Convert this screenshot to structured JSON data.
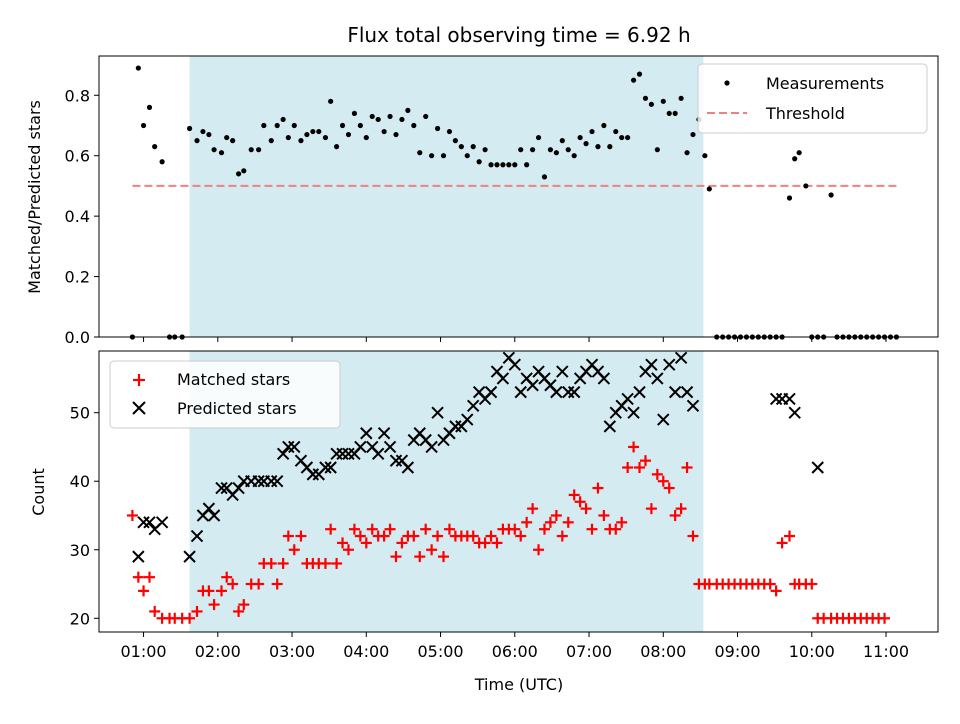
{
  "chart_data": {
    "type": "scatter",
    "title": "Flux total observing time = 6.92 h",
    "xlabel": "Time (UTC)",
    "x_tick_labels": [
      "01:00",
      "02:00",
      "03:00",
      "04:00",
      "05:00",
      "06:00",
      "07:00",
      "08:00",
      "09:00",
      "10:00",
      "11:00"
    ],
    "x_ticks": [
      1,
      2,
      3,
      4,
      5,
      6,
      7,
      8,
      9,
      10,
      11
    ],
    "xlim": [
      0.4,
      11.7
    ],
    "shaded_interval": [
      1.62,
      8.54
    ],
    "shade_color": "#d4ebf1",
    "top": {
      "ylabel": "Matched/Predicted stars",
      "ylim": [
        0.0,
        0.93
      ],
      "y_ticks": [
        0.0,
        0.2,
        0.4,
        0.6,
        0.8
      ],
      "y_tick_labels": [
        "0.0",
        "0.2",
        "0.4",
        "0.6",
        "0.8"
      ],
      "threshold": {
        "name": "Threshold",
        "value": 0.5,
        "x_range": [
          0.85,
          11.15
        ],
        "color": "#f08080"
      },
      "series": [
        {
          "name": "Measurements",
          "color": "#000000",
          "points": [
            [
              0.85,
              0.0
            ],
            [
              0.93,
              0.89
            ],
            [
              1.0,
              0.7
            ],
            [
              1.08,
              0.76
            ],
            [
              1.15,
              0.63
            ],
            [
              1.25,
              0.58
            ],
            [
              1.35,
              0.0
            ],
            [
              1.42,
              0.0
            ],
            [
              1.52,
              0.0
            ],
            [
              1.62,
              0.69
            ],
            [
              1.72,
              0.65
            ],
            [
              1.8,
              0.68
            ],
            [
              1.88,
              0.67
            ],
            [
              1.95,
              0.62
            ],
            [
              2.05,
              0.61
            ],
            [
              2.12,
              0.66
            ],
            [
              2.2,
              0.65
            ],
            [
              2.28,
              0.54
            ],
            [
              2.35,
              0.55
            ],
            [
              2.45,
              0.62
            ],
            [
              2.55,
              0.62
            ],
            [
              2.62,
              0.7
            ],
            [
              2.72,
              0.65
            ],
            [
              2.8,
              0.7
            ],
            [
              2.88,
              0.72
            ],
            [
              2.95,
              0.66
            ],
            [
              3.03,
              0.7
            ],
            [
              3.12,
              0.65
            ],
            [
              3.2,
              0.67
            ],
            [
              3.28,
              0.68
            ],
            [
              3.36,
              0.68
            ],
            [
              3.45,
              0.66
            ],
            [
              3.52,
              0.78
            ],
            [
              3.6,
              0.63
            ],
            [
              3.68,
              0.7
            ],
            [
              3.76,
              0.67
            ],
            [
              3.84,
              0.74
            ],
            [
              3.92,
              0.7
            ],
            [
              4.0,
              0.66
            ],
            [
              4.08,
              0.73
            ],
            [
              4.16,
              0.72
            ],
            [
              4.24,
              0.68
            ],
            [
              4.32,
              0.73
            ],
            [
              4.4,
              0.67
            ],
            [
              4.48,
              0.72
            ],
            [
              4.56,
              0.75
            ],
            [
              4.64,
              0.7
            ],
            [
              4.72,
              0.61
            ],
            [
              4.8,
              0.73
            ],
            [
              4.88,
              0.6
            ],
            [
              4.96,
              0.69
            ],
            [
              5.04,
              0.6
            ],
            [
              5.12,
              0.68
            ],
            [
              5.2,
              0.65
            ],
            [
              5.28,
              0.63
            ],
            [
              5.36,
              0.6
            ],
            [
              5.44,
              0.63
            ],
            [
              5.52,
              0.58
            ],
            [
              5.6,
              0.62
            ],
            [
              5.68,
              0.57
            ],
            [
              5.76,
              0.57
            ],
            [
              5.84,
              0.57
            ],
            [
              5.92,
              0.57
            ],
            [
              6.0,
              0.57
            ],
            [
              6.08,
              0.62
            ],
            [
              6.16,
              0.57
            ],
            [
              6.24,
              0.62
            ],
            [
              6.32,
              0.66
            ],
            [
              6.4,
              0.53
            ],
            [
              6.48,
              0.62
            ],
            [
              6.56,
              0.61
            ],
            [
              6.64,
              0.65
            ],
            [
              6.72,
              0.62
            ],
            [
              6.8,
              0.6
            ],
            [
              6.88,
              0.66
            ],
            [
              6.96,
              0.64
            ],
            [
              7.04,
              0.68
            ],
            [
              7.12,
              0.63
            ],
            [
              7.2,
              0.7
            ],
            [
              7.28,
              0.63
            ],
            [
              7.36,
              0.68
            ],
            [
              7.44,
              0.66
            ],
            [
              7.52,
              0.66
            ],
            [
              7.6,
              0.85
            ],
            [
              7.68,
              0.87
            ],
            [
              7.76,
              0.79
            ],
            [
              7.84,
              0.77
            ],
            [
              7.92,
              0.62
            ],
            [
              8.0,
              0.78
            ],
            [
              8.08,
              0.74
            ],
            [
              8.16,
              0.74
            ],
            [
              8.24,
              0.79
            ],
            [
              8.32,
              0.61
            ],
            [
              8.4,
              0.67
            ],
            [
              8.48,
              0.72
            ],
            [
              8.56,
              0.6
            ],
            [
              8.62,
              0.49
            ],
            [
              8.72,
              0.0
            ],
            [
              8.8,
              0.0
            ],
            [
              8.88,
              0.0
            ],
            [
              8.96,
              0.0
            ],
            [
              9.04,
              0.0
            ],
            [
              9.12,
              0.0
            ],
            [
              9.2,
              0.0
            ],
            [
              9.28,
              0.0
            ],
            [
              9.36,
              0.0
            ],
            [
              9.44,
              0.0
            ],
            [
              9.52,
              0.0
            ],
            [
              9.6,
              0.0
            ],
            [
              9.7,
              0.46
            ],
            [
              9.77,
              0.59
            ],
            [
              9.83,
              0.61
            ],
            [
              9.92,
              0.5
            ],
            [
              10.0,
              0.0
            ],
            [
              10.08,
              0.0
            ],
            [
              10.16,
              0.0
            ],
            [
              10.26,
              0.47
            ],
            [
              10.34,
              0.0
            ],
            [
              10.42,
              0.0
            ],
            [
              10.5,
              0.0
            ],
            [
              10.58,
              0.0
            ],
            [
              10.66,
              0.0
            ],
            [
              10.74,
              0.0
            ],
            [
              10.82,
              0.0
            ],
            [
              10.9,
              0.0
            ],
            [
              10.98,
              0.0
            ],
            [
              11.06,
              0.0
            ],
            [
              11.14,
              0.0
            ]
          ]
        }
      ],
      "legend": {
        "placement": "top-right",
        "entries": [
          "Measurements",
          "Threshold"
        ]
      }
    },
    "bottom": {
      "ylabel": "Count",
      "ylim": [
        18,
        59
      ],
      "y_ticks": [
        20,
        30,
        40,
        50
      ],
      "y_tick_labels": [
        "20",
        "30",
        "40",
        "50"
      ],
      "x": [
        0.85,
        0.93,
        1.0,
        1.08,
        1.15,
        1.25,
        1.35,
        1.42,
        1.52,
        1.62,
        1.72,
        1.8,
        1.88,
        1.95,
        2.05,
        2.12,
        2.2,
        2.28,
        2.35,
        2.45,
        2.55,
        2.62,
        2.72,
        2.8,
        2.88,
        2.95,
        3.03,
        3.12,
        3.2,
        3.28,
        3.36,
        3.45,
        3.52,
        3.6,
        3.68,
        3.76,
        3.84,
        3.92,
        4.0,
        4.08,
        4.16,
        4.24,
        4.32,
        4.4,
        4.48,
        4.56,
        4.64,
        4.72,
        4.8,
        4.88,
        4.96,
        5.04,
        5.12,
        5.2,
        5.28,
        5.36,
        5.44,
        5.52,
        5.6,
        5.68,
        5.76,
        5.84,
        5.92,
        6.0,
        6.08,
        6.16,
        6.24,
        6.32,
        6.4,
        6.48,
        6.56,
        6.64,
        6.72,
        6.8,
        6.88,
        6.96,
        7.04,
        7.12,
        7.2,
        7.28,
        7.36,
        7.44,
        7.52,
        7.6,
        7.68,
        7.76,
        7.84,
        7.92,
        8.0,
        8.08,
        8.16,
        8.24,
        8.32,
        8.4,
        8.48,
        8.56,
        8.62,
        8.72,
        8.8,
        8.88,
        8.96,
        9.04,
        9.12,
        9.2,
        9.28,
        9.36,
        9.44,
        9.52,
        9.6,
        9.7,
        9.77,
        9.83,
        9.92,
        10.0,
        10.08,
        10.16,
        10.26,
        10.34,
        10.42,
        10.5,
        10.58,
        10.66,
        10.74,
        10.82,
        10.9,
        10.98,
        11.06,
        11.14
      ],
      "series": [
        {
          "name": "Matched stars",
          "marker": "plus",
          "color": "#ff0000",
          "values": [
            35,
            26,
            24,
            26,
            21,
            20,
            20,
            20,
            20,
            20,
            21,
            24,
            24,
            22,
            24,
            26,
            25,
            21,
            22,
            25,
            25,
            28,
            28,
            25,
            28,
            32,
            30,
            32,
            28,
            28,
            28,
            28,
            33,
            28,
            31,
            30,
            33,
            32,
            31,
            33,
            32,
            32,
            33,
            29,
            31,
            32,
            32,
            29,
            33,
            30,
            32,
            29,
            33,
            32,
            32,
            32,
            32,
            31,
            31,
            32,
            31,
            33,
            33,
            33,
            32,
            34,
            36,
            30,
            33,
            34,
            35,
            32,
            34,
            38,
            37,
            36,
            33,
            39,
            35,
            33,
            33,
            34,
            42,
            45,
            42,
            43,
            36,
            41,
            40,
            39,
            35,
            36,
            42,
            32,
            25,
            25,
            25,
            25,
            25,
            25,
            25,
            25,
            25,
            25,
            25,
            25,
            25,
            24,
            31,
            32,
            25,
            25,
            25,
            25,
            20,
            20,
            20,
            20,
            20,
            20,
            20,
            20,
            20,
            20,
            20,
            20
          ]
        },
        {
          "name": "Predicted stars",
          "marker": "x",
          "color": "#000000",
          "values": [
            null,
            29,
            34,
            34,
            33,
            34,
            null,
            null,
            null,
            29,
            32,
            35,
            36,
            35,
            39,
            39,
            38,
            39,
            40,
            40,
            40,
            40,
            40,
            40,
            44,
            45,
            45,
            43,
            42,
            41,
            41,
            42,
            42,
            44,
            44,
            44,
            44,
            45,
            47,
            45,
            44,
            47,
            45,
            43,
            43,
            42,
            46,
            47,
            46,
            45,
            50,
            46,
            47,
            48,
            48,
            49,
            51,
            53,
            52,
            53,
            56,
            55,
            58,
            57,
            53,
            55,
            54,
            56,
            55,
            54,
            53,
            56,
            53,
            53,
            55,
            56,
            57,
            56,
            55,
            48,
            50,
            51,
            52,
            50,
            53,
            56,
            57,
            55,
            49,
            57,
            53,
            58,
            53,
            51,
            null,
            null,
            null,
            null,
            null,
            null,
            null,
            null,
            null,
            null,
            null,
            null,
            null,
            52,
            52,
            52,
            50,
            null,
            null,
            null,
            42,
            null,
            null,
            null,
            null,
            null,
            null,
            null,
            null,
            null,
            null,
            null
          ]
        }
      ],
      "legend": {
        "placement": "top-left",
        "entries": [
          "Matched stars",
          "Predicted stars"
        ]
      }
    }
  }
}
